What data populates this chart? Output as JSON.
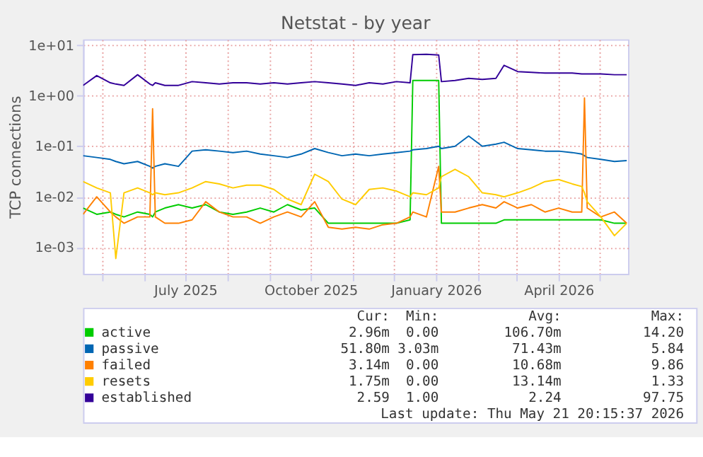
{
  "chart_data": {
    "type": "line",
    "title": "Netstat - by year",
    "ylabel": "TCP connections",
    "log": true,
    "grid": true,
    "legend": "bottom",
    "line_style": "solid",
    "marker": "none",
    "x": [
      "2025-04-17",
      "2025-04-27",
      "2025-05-07",
      "2025-05-11",
      "2025-05-17",
      "2025-05-27",
      "2025-06-05",
      "2025-06-07",
      "2025-06-09",
      "2025-06-16",
      "2025-06-26",
      "2025-07-06",
      "2025-07-16",
      "2025-07-26",
      "2025-08-05",
      "2025-08-15",
      "2025-08-25",
      "2025-09-04",
      "2025-09-14",
      "2025-09-24",
      "2025-10-04",
      "2025-10-14",
      "2025-10-24",
      "2025-11-03",
      "2025-11-13",
      "2025-11-23",
      "2025-12-03",
      "2025-12-13",
      "2025-12-15",
      "2025-12-25",
      "2026-01-03",
      "2026-01-05",
      "2026-01-15",
      "2026-01-25",
      "2026-02-04",
      "2026-02-14",
      "2026-02-20",
      "2026-03-02",
      "2026-03-12",
      "2026-03-22",
      "2026-04-01",
      "2026-04-11",
      "2026-04-18",
      "2026-04-20",
      "2026-04-22",
      "2026-05-02",
      "2026-05-12",
      "2026-05-21"
    ],
    "xlim": [
      "2025-04-17",
      "2026-05-22"
    ],
    "xticks": [
      {
        "value": "2025-05-01",
        "label": null
      },
      {
        "value": "2025-06-01",
        "label": null
      },
      {
        "value": "2025-07-01",
        "label": "July 2025"
      },
      {
        "value": "2025-08-01",
        "label": null
      },
      {
        "value": "2025-09-01",
        "label": null
      },
      {
        "value": "2025-10-01",
        "label": "October 2025"
      },
      {
        "value": "2025-11-01",
        "label": null
      },
      {
        "value": "2025-12-01",
        "label": null
      },
      {
        "value": "2026-01-01",
        "label": "January 2026"
      },
      {
        "value": "2026-02-01",
        "label": null
      },
      {
        "value": "2026-03-01",
        "label": null
      },
      {
        "value": "2026-04-01",
        "label": "April 2026"
      },
      {
        "value": "2026-05-01",
        "label": null
      }
    ],
    "ylim": [
      0.0003,
      13
    ],
    "yticks": [
      {
        "value": 0.001,
        "label": "1e-03"
      },
      {
        "value": 0.01,
        "label": "1e-02"
      },
      {
        "value": 0.1,
        "label": "1e-01"
      },
      {
        "value": 1,
        "label": "1e+00"
      },
      {
        "value": 10,
        "label": "1e+01"
      }
    ],
    "series": [
      {
        "name": "active",
        "color": "#00cc00",
        "values": [
          0.006,
          0.0045,
          0.005,
          0.0045,
          0.004,
          0.005,
          0.0045,
          0.004,
          0.005,
          0.006,
          0.007,
          0.006,
          0.007,
          0.005,
          0.0045,
          0.005,
          0.006,
          0.005,
          0.007,
          0.0055,
          0.006,
          0.003,
          0.003,
          0.003,
          0.003,
          0.003,
          0.003,
          0.0035,
          2.0,
          2.0,
          2.0,
          0.003,
          0.003,
          0.003,
          0.003,
          0.003,
          0.0035,
          0.0035,
          0.0035,
          0.0035,
          0.0035,
          0.0035,
          0.0035,
          0.0035,
          0.0035,
          0.0035,
          0.003,
          0.003
        ]
      },
      {
        "name": "passive",
        "color": "#0066b3",
        "values": [
          0.065,
          0.06,
          0.055,
          0.05,
          0.045,
          0.05,
          0.04,
          0.037,
          0.04,
          0.045,
          0.04,
          0.08,
          0.085,
          0.08,
          0.075,
          0.08,
          0.07,
          0.065,
          0.06,
          0.07,
          0.09,
          0.075,
          0.065,
          0.07,
          0.065,
          0.07,
          0.075,
          0.08,
          0.085,
          0.09,
          0.1,
          0.09,
          0.1,
          0.16,
          0.1,
          0.11,
          0.12,
          0.09,
          0.085,
          0.08,
          0.08,
          0.075,
          0.07,
          0.065,
          0.06,
          0.055,
          0.05,
          0.052
        ]
      },
      {
        "name": "failed",
        "color": "#ff8000",
        "values": [
          0.0045,
          0.01,
          0.005,
          0.004,
          0.003,
          0.004,
          0.004,
          0.55,
          0.004,
          0.003,
          0.003,
          0.0035,
          0.008,
          0.005,
          0.004,
          0.004,
          0.003,
          0.004,
          0.005,
          0.004,
          0.008,
          0.0025,
          0.0023,
          0.0025,
          0.0023,
          0.0028,
          0.003,
          0.004,
          0.005,
          0.004,
          0.04,
          0.005,
          0.005,
          0.006,
          0.007,
          0.006,
          0.008,
          0.006,
          0.007,
          0.005,
          0.006,
          0.005,
          0.005,
          0.9,
          0.006,
          0.004,
          0.005,
          0.003
        ]
      },
      {
        "name": "resets",
        "color": "#ffcc00",
        "values": [
          0.02,
          0.015,
          0.012,
          0.0006,
          0.012,
          0.015,
          0.012,
          0.011,
          0.012,
          0.011,
          0.012,
          0.015,
          0.02,
          0.018,
          0.015,
          0.017,
          0.017,
          0.014,
          0.009,
          0.007,
          0.028,
          0.02,
          0.009,
          0.007,
          0.014,
          0.015,
          0.013,
          0.01,
          0.012,
          0.011,
          0.015,
          0.025,
          0.035,
          0.025,
          0.012,
          0.011,
          0.01,
          0.012,
          0.015,
          0.02,
          0.022,
          0.018,
          0.016,
          0.012,
          0.008,
          0.004,
          0.0017,
          0.003
        ]
      },
      {
        "name": "established",
        "color": "#330099",
        "values": [
          1.6,
          2.5,
          1.8,
          1.7,
          1.6,
          2.6,
          1.7,
          1.6,
          1.8,
          1.6,
          1.6,
          1.9,
          1.8,
          1.7,
          1.8,
          1.8,
          1.7,
          1.8,
          1.7,
          1.8,
          1.9,
          1.8,
          1.7,
          1.6,
          1.8,
          1.7,
          1.9,
          1.8,
          6.5,
          6.6,
          6.4,
          1.9,
          2.0,
          2.2,
          2.1,
          2.2,
          4.0,
          3.0,
          2.9,
          2.8,
          2.8,
          2.8,
          2.7,
          2.7,
          2.7,
          2.7,
          2.6,
          2.6
        ]
      }
    ],
    "annotations": [
      "Cur: Min: Avg: Max:",
      "2.96m 0.00 106.70m 14.20",
      "51.80m 3.03m 71.43m 5.84",
      "3.14m 0.00 10.68m 9.86",
      "1.75m 0.00 13.14m 1.33",
      "2.59 1.00 2.24 97.75",
      "Last update: Thu May 21 20:15:37 2026"
    ]
  }
}
